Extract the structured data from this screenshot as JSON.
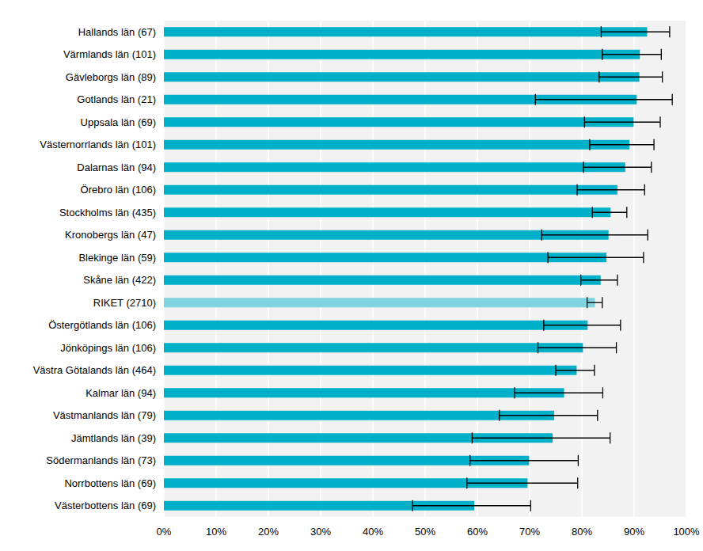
{
  "chart_data": {
    "type": "bar",
    "orientation": "horizontal",
    "categories": [
      "Hallands län (67)",
      "Värmlands län (101)",
      "Gävleborgs län (89)",
      "Gotlands län (21)",
      "Uppsala län (69)",
      "Västernorrlands län (101)",
      "Dalarnas län (94)",
      "Örebro län (106)",
      "Stockholms län (435)",
      "Kronobergs län (47)",
      "Blekinge län (59)",
      "Skåne län (422)",
      "RIKET (2710)",
      "Östergötlands län (106)",
      "Jönköpings län (106)",
      "Västra Götalands län (464)",
      "Kalmar län (94)",
      "Västmanlands län (79)",
      "Jämtlands län (39)",
      "Södermanlands län (73)",
      "Norrbottens län (69)",
      "Västerbottens län (69)"
    ],
    "values": [
      92.5,
      91.1,
      91.0,
      90.5,
      89.9,
      89.1,
      88.3,
      86.8,
      85.5,
      85.1,
      84.7,
      83.6,
      82.5,
      81.1,
      80.2,
      79.0,
      76.6,
      74.7,
      74.4,
      69.9,
      69.6,
      59.4
    ],
    "error_low": [
      83.7,
      83.9,
      83.3,
      71.1,
      80.5,
      81.5,
      80.3,
      79.1,
      82.0,
      72.3,
      73.5,
      79.8,
      81.0,
      72.7,
      71.6,
      75.0,
      67.1,
      64.2,
      59.0,
      58.6,
      58.0,
      47.6
    ],
    "error_high": [
      96.8,
      95.2,
      95.4,
      97.3,
      95.0,
      93.8,
      93.3,
      92.0,
      88.6,
      92.6,
      91.8,
      86.8,
      83.9,
      87.4,
      86.6,
      82.4,
      84.0,
      83.0,
      85.4,
      79.3,
      79.2,
      70.2
    ],
    "colors": [
      "#00b0c8",
      "#00b0c8",
      "#00b0c8",
      "#00b0c8",
      "#00b0c8",
      "#00b0c8",
      "#00b0c8",
      "#00b0c8",
      "#00b0c8",
      "#00b0c8",
      "#00b0c8",
      "#00b0c8",
      "#7fd4e0",
      "#00b0c8",
      "#00b0c8",
      "#00b0c8",
      "#00b0c8",
      "#00b0c8",
      "#00b0c8",
      "#00b0c8",
      "#00b0c8",
      "#00b0c8"
    ],
    "xlim": [
      0,
      100
    ],
    "xticks": [
      {
        "value": 0,
        "label": "0%"
      },
      {
        "value": 10,
        "label": "10%"
      },
      {
        "value": 20,
        "label": "20%"
      },
      {
        "value": 30,
        "label": "30%"
      },
      {
        "value": 40,
        "label": "40%"
      },
      {
        "value": 50,
        "label": "50%"
      },
      {
        "value": 60,
        "label": "60%"
      },
      {
        "value": 70,
        "label": "70%"
      },
      {
        "value": 80,
        "label": "80%"
      },
      {
        "value": 90,
        "label": "90%"
      },
      {
        "value": 100,
        "label": "100%"
      }
    ],
    "grid": true
  }
}
